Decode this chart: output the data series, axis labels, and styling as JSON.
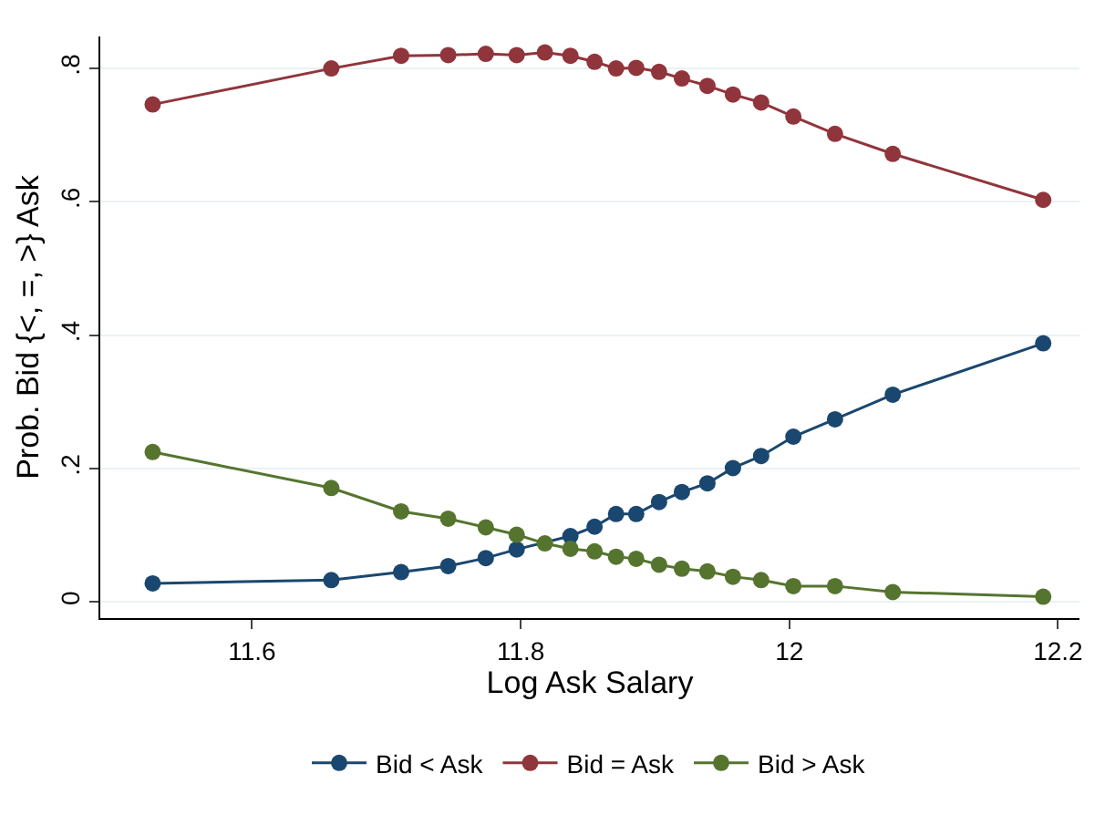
{
  "chart_data": {
    "type": "line",
    "xlabel": "Log Ask Salary",
    "ylabel": "Prob. Bid {<, =, >} Ask",
    "x": [
      11.526,
      11.659,
      11.711,
      11.746,
      11.774,
      11.797,
      11.818,
      11.837,
      11.855,
      11.871,
      11.886,
      11.903,
      11.92,
      11.939,
      11.958,
      11.979,
      12.003,
      12.034,
      12.077,
      12.189
    ],
    "series": [
      {
        "name": "Bid < Ask",
        "color": "#1a476f",
        "values": [
          0.028,
          0.033,
          0.045,
          0.054,
          0.066,
          0.079,
          null,
          0.099,
          0.113,
          0.132,
          0.132,
          0.15,
          0.165,
          0.178,
          0.201,
          0.219,
          0.248,
          0.274,
          0.311,
          0.388
        ]
      },
      {
        "name": "Bid = Ask",
        "color": "#90353b",
        "values": [
          0.746,
          0.8,
          0.819,
          0.82,
          0.822,
          0.82,
          0.824,
          0.819,
          0.81,
          0.8,
          0.801,
          0.795,
          0.785,
          0.774,
          0.761,
          0.749,
          0.728,
          0.702,
          0.672,
          0.603
        ]
      },
      {
        "name": "Bid > Ask",
        "color": "#55752f",
        "values": [
          0.225,
          0.171,
          0.136,
          0.125,
          0.112,
          0.101,
          0.088,
          0.08,
          0.076,
          0.068,
          0.065,
          0.056,
          0.05,
          0.046,
          0.038,
          0.033,
          0.024,
          0.024,
          0.015,
          0.008
        ]
      }
    ],
    "xlim": [
      11.487,
      12.216
    ],
    "xticks": [
      11.6,
      11.8,
      12,
      12.2
    ],
    "ylim": [
      -0.024,
      0.848
    ],
    "yticks": [
      {
        "value": 0,
        "label": "0"
      },
      {
        "value": 0.2,
        "label": ".2"
      },
      {
        "value": 0.4,
        "label": ".4"
      },
      {
        "value": 0.6,
        "label": ".6"
      },
      {
        "value": 0.8,
        "label": ".8"
      }
    ],
    "grid": "y",
    "legend": "bottom",
    "marker": "circle",
    "line_style": "solid"
  }
}
